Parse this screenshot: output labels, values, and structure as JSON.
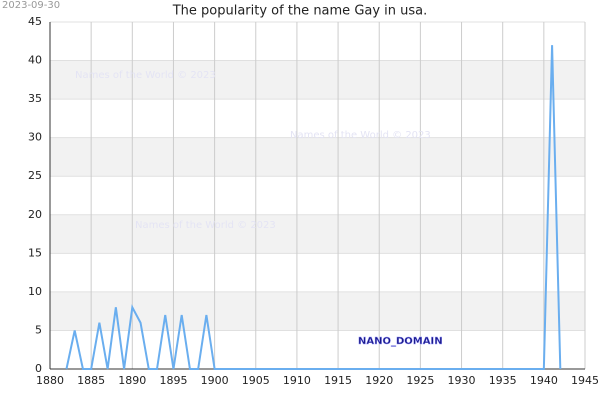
{
  "chart_data": {
    "type": "line",
    "title": "The popularity of the name Gay in usa.",
    "date": "2023-09-30",
    "watermarks": [
      "Names of the World © 2023",
      "Names of the World © 2023",
      "Names of the World © 2023"
    ],
    "badge": "NANO_DOMAIN",
    "x": [
      1882,
      1883,
      1884,
      1885,
      1886,
      1887,
      1888,
      1889,
      1890,
      1891,
      1892,
      1893,
      1894,
      1895,
      1896,
      1897,
      1898,
      1899,
      1900,
      1901,
      1902,
      1903,
      1904,
      1905,
      1906,
      1907,
      1908,
      1909,
      1910,
      1911,
      1912,
      1913,
      1914,
      1915,
      1916,
      1917,
      1918,
      1919,
      1920,
      1921,
      1922,
      1923,
      1924,
      1925,
      1926,
      1927,
      1928,
      1929,
      1930,
      1931,
      1932,
      1933,
      1934,
      1935,
      1936,
      1937,
      1938,
      1939,
      1940,
      1941,
      1942
    ],
    "values": [
      0,
      5,
      0,
      0,
      6,
      0,
      8,
      0,
      8,
      6,
      0,
      0,
      7,
      0,
      7,
      0,
      0,
      7,
      0,
      0,
      0,
      0,
      0,
      0,
      0,
      0,
      0,
      0,
      0,
      0,
      0,
      0,
      0,
      0,
      0,
      0,
      0,
      0,
      0,
      0,
      0,
      0,
      0,
      0,
      0,
      0,
      0,
      0,
      0,
      0,
      0,
      0,
      0,
      0,
      0,
      0,
      0,
      0,
      0,
      42,
      0
    ],
    "color": "#6aaeef",
    "xlim": [
      1880,
      1945
    ],
    "xticks": [
      1880,
      1885,
      1890,
      1895,
      1900,
      1905,
      1910,
      1915,
      1920,
      1925,
      1930,
      1935,
      1940,
      1945
    ],
    "ylim": [
      0,
      45
    ],
    "yticks": [
      0,
      5,
      10,
      15,
      20,
      25,
      30,
      35,
      40,
      45
    ],
    "grid": true
  }
}
